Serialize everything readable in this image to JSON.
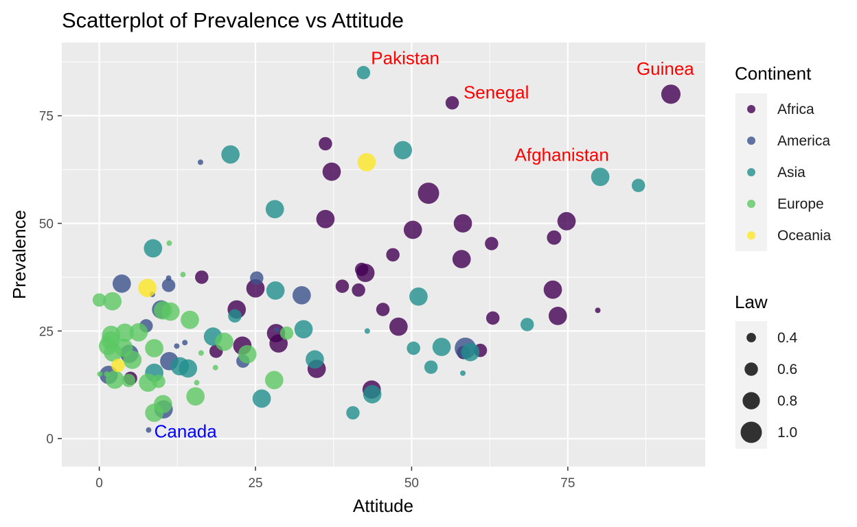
{
  "chart_data": {
    "type": "scatter",
    "title": "Scatterplot of Prevalence vs Attitude",
    "xlabel": "Attitude",
    "ylabel": "Prevalence",
    "xlim": [
      -6,
      97
    ],
    "ylim": [
      -6.5,
      92
    ],
    "xticks": [
      0,
      25,
      50,
      75
    ],
    "yticks": [
      0,
      25,
      50,
      75
    ],
    "xtick_labels": [
      "0",
      "25",
      "50",
      "75"
    ],
    "ytick_labels": [
      "0",
      "25",
      "50",
      "75"
    ],
    "grid": true,
    "legend_position": "right",
    "colors": {
      "panel": "#ebebeb",
      "grid": "#ffffff",
      "Africa": "#440154",
      "America": "#3b528b",
      "Asia": "#21908c",
      "Europe": "#5dc863",
      "Oceania": "#fde725"
    },
    "color_legend": {
      "title": "Continent",
      "entries": [
        "Africa",
        "America",
        "Asia",
        "Europe",
        "Oceania"
      ]
    },
    "size_legend": {
      "title": "Law",
      "entries": [
        {
          "label": "0.4",
          "value": 0.4
        },
        {
          "label": "0.6",
          "value": 0.6
        },
        {
          "label": "0.8",
          "value": 0.8
        },
        {
          "label": "1.0",
          "value": 1.0
        }
      ]
    },
    "annotations": [
      {
        "text": "Pakistan",
        "x": 43.5,
        "y": 87,
        "color": "#ff0000"
      },
      {
        "text": "Senegal",
        "x": 58.3,
        "y": 79,
        "color": "#ff0000"
      },
      {
        "text": "Guinea",
        "x": 86,
        "y": 84.5,
        "color": "#ff0000"
      },
      {
        "text": "Afghanistan",
        "x": 66.5,
        "y": 64.5,
        "color": "#ff0000"
      },
      {
        "text": "Canada",
        "x": 8.8,
        "y": 0.3,
        "color": "#0000ff"
      }
    ],
    "series": [
      {
        "name": "Africa",
        "points": [
          {
            "x": 91.5,
            "y": 80,
            "law": 0.9
          },
          {
            "x": 56.5,
            "y": 78,
            "law": 0.6
          },
          {
            "x": 36.2,
            "y": 68.5,
            "law": 0.6
          },
          {
            "x": 37.2,
            "y": 62,
            "law": 0.85
          },
          {
            "x": 52.7,
            "y": 57,
            "law": 1.0
          },
          {
            "x": 36.2,
            "y": 51,
            "law": 0.85
          },
          {
            "x": 50.2,
            "y": 48.5,
            "law": 0.85
          },
          {
            "x": 58.2,
            "y": 50,
            "law": 0.85
          },
          {
            "x": 74.8,
            "y": 50.5,
            "law": 0.85
          },
          {
            "x": 72.8,
            "y": 46.7,
            "law": 0.65
          },
          {
            "x": 62.8,
            "y": 45.3,
            "law": 0.6
          },
          {
            "x": 47,
            "y": 42.7,
            "law": 0.6
          },
          {
            "x": 58,
            "y": 41.7,
            "law": 0.85
          },
          {
            "x": 16.4,
            "y": 37.5,
            "law": 0.6
          },
          {
            "x": 42,
            "y": 39.3,
            "law": 0.6
          },
          {
            "x": 42.6,
            "y": 38.5,
            "law": 0.85
          },
          {
            "x": 38.9,
            "y": 35.4,
            "law": 0.6
          },
          {
            "x": 41.5,
            "y": 34.5,
            "law": 0.6
          },
          {
            "x": 25,
            "y": 34.9,
            "law": 0.85
          },
          {
            "x": 72.6,
            "y": 34.6,
            "law": 0.85
          },
          {
            "x": 22,
            "y": 30,
            "law": 0.85
          },
          {
            "x": 45.4,
            "y": 30,
            "law": 0.6
          },
          {
            "x": 79.8,
            "y": 29.8,
            "law": 0.2
          },
          {
            "x": 73.4,
            "y": 28.5,
            "law": 0.85
          },
          {
            "x": 63,
            "y": 28,
            "law": 0.6
          },
          {
            "x": 47.9,
            "y": 26,
            "law": 0.85
          },
          {
            "x": 28.3,
            "y": 24.5,
            "law": 0.85
          },
          {
            "x": 22.9,
            "y": 21.6,
            "law": 0.85
          },
          {
            "x": 28.7,
            "y": 22.1,
            "law": 0.85
          },
          {
            "x": 18.7,
            "y": 20.3,
            "law": 0.6
          },
          {
            "x": 58.3,
            "y": 20,
            "law": 0.6
          },
          {
            "x": 61,
            "y": 20.5,
            "law": 0.6
          },
          {
            "x": 34.8,
            "y": 16.2,
            "law": 0.85
          },
          {
            "x": 43.6,
            "y": 11.4,
            "law": 0.85
          },
          {
            "x": 5,
            "y": 14,
            "law": 0.6
          }
        ]
      },
      {
        "name": "America",
        "points": [
          {
            "x": 16.2,
            "y": 64.2,
            "law": 0.2
          },
          {
            "x": 3.6,
            "y": 36,
            "law": 0.85
          },
          {
            "x": 11.1,
            "y": 37.3,
            "law": 0.2
          },
          {
            "x": 11.1,
            "y": 35.6,
            "law": 0.6
          },
          {
            "x": 25.2,
            "y": 37.3,
            "law": 0.6
          },
          {
            "x": 8.5,
            "y": 33.5,
            "law": 0.2
          },
          {
            "x": 32.4,
            "y": 33.3,
            "law": 0.85
          },
          {
            "x": 9.9,
            "y": 30,
            "law": 0.85
          },
          {
            "x": 7.5,
            "y": 26.2,
            "law": 0.6
          },
          {
            "x": 12.4,
            "y": 21.5,
            "law": 0.2
          },
          {
            "x": 13.7,
            "y": 22.3,
            "law": 0.2
          },
          {
            "x": 4.8,
            "y": 19.7,
            "law": 0.85
          },
          {
            "x": 11.2,
            "y": 18,
            "law": 0.85
          },
          {
            "x": 23,
            "y": 18,
            "law": 0.6
          },
          {
            "x": 1.5,
            "y": 14.8,
            "law": 0.85
          },
          {
            "x": 10.3,
            "y": 6.8,
            "law": 0.85
          },
          {
            "x": 7.9,
            "y": 2,
            "law": 0.2
          },
          {
            "x": 58.6,
            "y": 21,
            "law": 1.0
          },
          {
            "x": 28.4,
            "y": 25.3,
            "law": 0.2
          }
        ]
      },
      {
        "name": "Asia",
        "points": [
          {
            "x": 42.3,
            "y": 85,
            "law": 0.6
          },
          {
            "x": 21,
            "y": 66,
            "law": 0.85
          },
          {
            "x": 48.6,
            "y": 67,
            "law": 0.85
          },
          {
            "x": 80.2,
            "y": 60.8,
            "law": 0.85
          },
          {
            "x": 86.3,
            "y": 58.8,
            "law": 0.6
          },
          {
            "x": 28.1,
            "y": 53.3,
            "law": 0.85
          },
          {
            "x": 8.6,
            "y": 44.2,
            "law": 0.85
          },
          {
            "x": 28.2,
            "y": 34.4,
            "law": 0.85
          },
          {
            "x": 51.1,
            "y": 33,
            "law": 0.85
          },
          {
            "x": 21.7,
            "y": 28.5,
            "law": 0.6
          },
          {
            "x": 68.5,
            "y": 26.5,
            "law": 0.6
          },
          {
            "x": 32.7,
            "y": 25.4,
            "law": 0.85
          },
          {
            "x": 42.9,
            "y": 25,
            "law": 0.2
          },
          {
            "x": 18.2,
            "y": 23.7,
            "law": 0.85
          },
          {
            "x": 50.3,
            "y": 21,
            "law": 0.6
          },
          {
            "x": 54.8,
            "y": 21.3,
            "law": 0.85
          },
          {
            "x": 59.4,
            "y": 20.1,
            "law": 0.85
          },
          {
            "x": 34.5,
            "y": 18.4,
            "law": 0.85
          },
          {
            "x": 53.1,
            "y": 16.6,
            "law": 0.6
          },
          {
            "x": 12.9,
            "y": 16.8,
            "law": 0.85
          },
          {
            "x": 14.2,
            "y": 16.3,
            "law": 0.85
          },
          {
            "x": 8.8,
            "y": 15.3,
            "law": 0.85
          },
          {
            "x": 58.2,
            "y": 15.2,
            "law": 0.2
          },
          {
            "x": 26,
            "y": 9.3,
            "law": 0.85
          },
          {
            "x": 43.7,
            "y": 10.3,
            "law": 0.85
          },
          {
            "x": 40.6,
            "y": 6,
            "law": 0.6
          }
        ]
      },
      {
        "name": "Europe",
        "points": [
          {
            "x": 11.2,
            "y": 45.4,
            "law": 0.2
          },
          {
            "x": 13.4,
            "y": 38.1,
            "law": 0.2
          },
          {
            "x": 0,
            "y": 32.2,
            "law": 0.6
          },
          {
            "x": 2.1,
            "y": 31.9,
            "law": 0.85
          },
          {
            "x": 10.2,
            "y": 29.8,
            "law": 0.85
          },
          {
            "x": 11.4,
            "y": 29.5,
            "law": 0.85
          },
          {
            "x": 14.5,
            "y": 27.6,
            "law": 0.85
          },
          {
            "x": 4.1,
            "y": 24.6,
            "law": 0.85
          },
          {
            "x": 6.3,
            "y": 24.7,
            "law": 0.85
          },
          {
            "x": 1.9,
            "y": 24.1,
            "law": 0.85
          },
          {
            "x": 1.8,
            "y": 22.8,
            "law": 0.85
          },
          {
            "x": 1.4,
            "y": 21.5,
            "law": 0.85
          },
          {
            "x": 3.9,
            "y": 21.1,
            "law": 0.85
          },
          {
            "x": 20,
            "y": 22.5,
            "law": 0.85
          },
          {
            "x": 30,
            "y": 24.5,
            "law": 0.6
          },
          {
            "x": 8.8,
            "y": 21,
            "law": 0.85
          },
          {
            "x": 2.2,
            "y": 20,
            "law": 0.85
          },
          {
            "x": 5.3,
            "y": 18.3,
            "law": 0.85
          },
          {
            "x": 23.7,
            "y": 19.6,
            "law": 0.85
          },
          {
            "x": 16.3,
            "y": 19.9,
            "law": 0.2
          },
          {
            "x": 0.1,
            "y": 15,
            "law": 0.2
          },
          {
            "x": 1.2,
            "y": 15,
            "law": 0.2
          },
          {
            "x": 18.6,
            "y": 16.5,
            "law": 0.2
          },
          {
            "x": 2.5,
            "y": 13.7,
            "law": 0.85
          },
          {
            "x": 4.7,
            "y": 13.5,
            "law": 0.6
          },
          {
            "x": 7.8,
            "y": 13,
            "law": 0.85
          },
          {
            "x": 9.5,
            "y": 13.3,
            "law": 0.6
          },
          {
            "x": 15.6,
            "y": 13,
            "law": 0.2
          },
          {
            "x": 28,
            "y": 13.6,
            "law": 0.85
          },
          {
            "x": 10.2,
            "y": 8,
            "law": 0.85
          },
          {
            "x": 15.4,
            "y": 9.8,
            "law": 0.85
          },
          {
            "x": 8.8,
            "y": 6,
            "law": 0.85
          }
        ]
      },
      {
        "name": "Oceania",
        "points": [
          {
            "x": 42.8,
            "y": 64.2,
            "law": 0.85
          },
          {
            "x": 7.7,
            "y": 35,
            "law": 0.85
          },
          {
            "x": 3,
            "y": 17,
            "law": 0.6
          }
        ]
      }
    ]
  }
}
